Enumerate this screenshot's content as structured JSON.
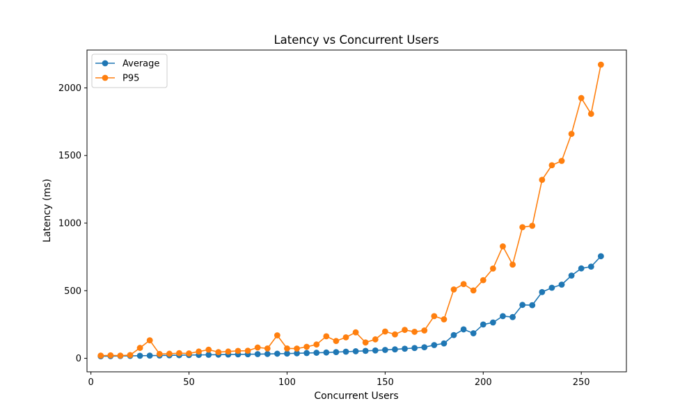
{
  "chart_data": {
    "type": "line",
    "title": "Latency vs Concurrent Users",
    "xlabel": "Concurrent Users",
    "ylabel": "Latency (ms)",
    "xlim": [
      -2,
      273
    ],
    "ylim": [
      -100,
      2280
    ],
    "xticks": [
      0,
      50,
      100,
      150,
      200,
      250
    ],
    "yticks": [
      0,
      500,
      1000,
      1500,
      2000
    ],
    "grid": false,
    "legend_position": "top-left",
    "x": [
      5,
      10,
      15,
      20,
      25,
      30,
      35,
      40,
      45,
      50,
      55,
      60,
      65,
      70,
      75,
      80,
      85,
      90,
      95,
      100,
      105,
      110,
      115,
      120,
      125,
      130,
      135,
      140,
      145,
      150,
      155,
      160,
      165,
      170,
      175,
      180,
      185,
      190,
      195,
      200,
      205,
      210,
      215,
      220,
      225,
      230,
      235,
      240,
      245,
      250,
      255,
      260
    ],
    "series": [
      {
        "name": "Average",
        "color": "#1f77b4",
        "marker": "circle",
        "values": [
          15,
          16,
          17,
          18,
          19,
          20,
          21,
          22,
          23,
          24,
          25,
          26,
          27,
          28,
          29,
          30,
          31,
          32,
          34,
          35,
          37,
          39,
          41,
          43,
          46,
          49,
          52,
          55,
          58,
          62,
          66,
          71,
          76,
          82,
          98,
          110,
          172,
          214,
          185,
          250,
          265,
          312,
          305,
          395,
          393,
          490,
          522,
          545,
          612,
          665,
          678,
          755
        ]
      },
      {
        "name": "P95",
        "color": "#ff7f0e",
        "marker": "circle",
        "values": [
          20,
          22,
          20,
          24,
          77,
          133,
          32,
          34,
          38,
          36,
          50,
          64,
          46,
          50,
          55,
          56,
          80,
          73,
          170,
          73,
          72,
          85,
          102,
          163,
          128,
          155,
          192,
          117,
          140,
          198,
          177,
          210,
          196,
          206,
          312,
          288,
          509,
          549,
          502,
          578,
          664,
          828,
          693,
          970,
          980,
          1320,
          1428,
          1460,
          1660,
          1925,
          1808,
          2172
        ]
      }
    ]
  }
}
